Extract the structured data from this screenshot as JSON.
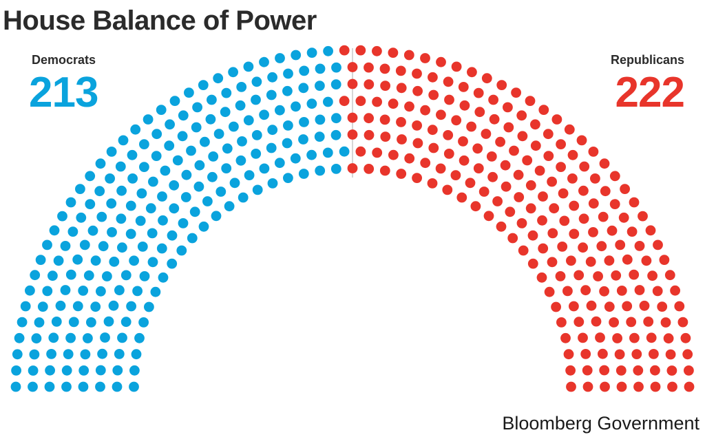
{
  "title": "House Balance of Power",
  "source": "Bloomberg Government",
  "chart_data": {
    "type": "parliament",
    "title": "House Balance of Power",
    "series": [
      {
        "name": "Democrats",
        "value": 213,
        "color": "#0aa3dd"
      },
      {
        "name": "Republicans",
        "value": 222,
        "color": "#e8352b"
      }
    ],
    "total_seats": 435,
    "rows": 8
  }
}
